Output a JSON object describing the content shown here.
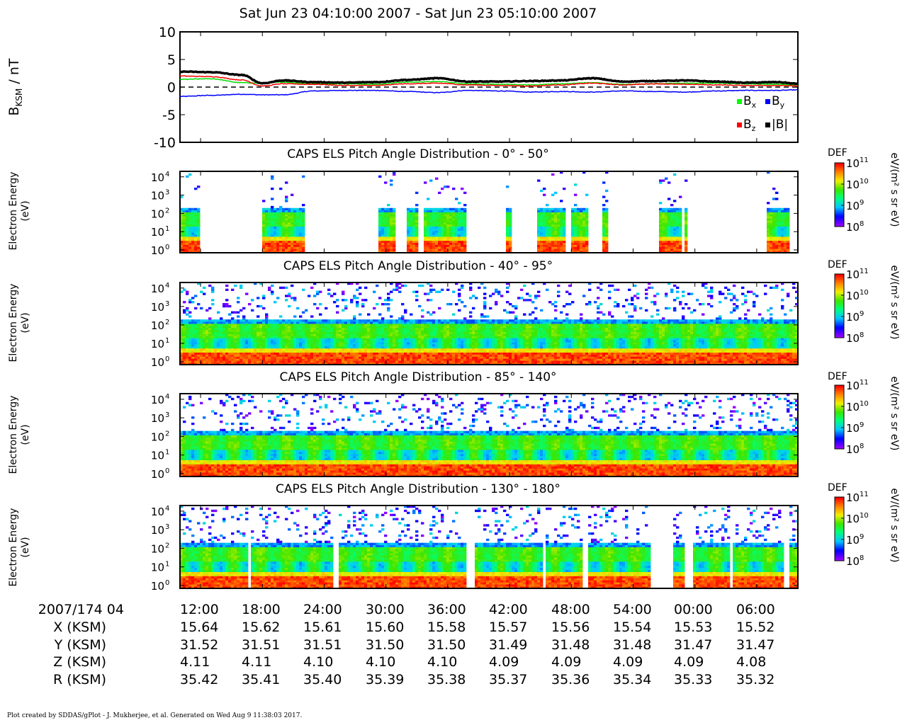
{
  "title": "Sat Jun 23 04:10:00 2007 - Sat Jun 23 05:10:00 2007",
  "mag_panel": {
    "ylabel_main": "B",
    "ylabel_sub": "KSM",
    "ylabel_unit": " / nT",
    "yticks": [
      "10",
      "5",
      "0",
      "-5",
      "-10"
    ],
    "legend": [
      {
        "name": "B",
        "sub": "x",
        "color": "#00ff00"
      },
      {
        "name": "B",
        "sub": "y",
        "color": "#0000ff"
      },
      {
        "name": "B",
        "sub": "z",
        "color": "#ff0000"
      },
      {
        "name": "|B|",
        "sub": "",
        "color": "#000000"
      }
    ]
  },
  "spectrograms": [
    {
      "title": "CAPS ELS Pitch Angle Distribution - 0° - 50°",
      "ylabel_line1": "Electron Energy",
      "ylabel_line2": "(eV)"
    },
    {
      "title": "CAPS ELS Pitch Angle Distribution - 40° - 95°",
      "ylabel_line1": "Electron Energy",
      "ylabel_line2": "(eV)"
    },
    {
      "title": "CAPS ELS Pitch Angle Distribution - 85° - 140°",
      "ylabel_line1": "Electron Energy",
      "ylabel_line2": "(eV)"
    },
    {
      "title": "CAPS ELS Pitch Angle Distribution - 130° - 180°",
      "ylabel_line1": "Electron Energy",
      "ylabel_line2": "(eV)"
    }
  ],
  "energy_ticks": [
    "10",
    "10",
    "10",
    "10",
    "10"
  ],
  "energy_exps": [
    "4",
    "3",
    "2",
    "1",
    "0"
  ],
  "colorbar": {
    "label": "DEF",
    "unit": "eV/(m² s sr eV)",
    "ticks": [
      "10",
      "10",
      "10",
      "10"
    ],
    "exps": [
      "11",
      "10",
      "9",
      "8"
    ]
  },
  "ephemeris": {
    "date_label": "2007/174 04",
    "times": [
      "12:00",
      "18:00",
      "24:00",
      "30:00",
      "36:00",
      "42:00",
      "48:00",
      "54:00",
      "00:00",
      "06:00"
    ],
    "rows": [
      {
        "label": "X (KSM)",
        "values": [
          "15.64",
          "15.62",
          "15.61",
          "15.60",
          "15.58",
          "15.57",
          "15.56",
          "15.54",
          "15.53",
          "15.52"
        ]
      },
      {
        "label": "Y (KSM)",
        "values": [
          "31.52",
          "31.51",
          "31.51",
          "31.50",
          "31.50",
          "31.49",
          "31.48",
          "31.48",
          "31.47",
          "31.47"
        ]
      },
      {
        "label": "Z (KSM)",
        "values": [
          "4.11",
          "4.11",
          "4.10",
          "4.10",
          "4.10",
          "4.09",
          "4.09",
          "4.09",
          "4.09",
          "4.08"
        ]
      },
      {
        "label": "R (KSM)",
        "values": [
          "35.42",
          "35.41",
          "35.40",
          "35.39",
          "35.38",
          "35.37",
          "35.36",
          "35.34",
          "35.33",
          "35.32"
        ]
      }
    ]
  },
  "footer": "Plot created by SDDAS/gPlot - J. Mukherjee, et al.  Generated on Wed Aug 9 11:38:03 2017.",
  "chart_data": [
    {
      "type": "line",
      "title": "Sat Jun 23 04:10:00 2007 - Sat Jun 23 05:10:00 2007",
      "ylabel": "BKSM / nT",
      "xlabel": "2007/174 04",
      "ylim": [
        -10,
        10
      ],
      "x_minutes": [
        10,
        13,
        16,
        18,
        20,
        23,
        26,
        29,
        32,
        35,
        38,
        41,
        44,
        47,
        50,
        53,
        56,
        59,
        62,
        65,
        68,
        70
      ],
      "series": [
        {
          "name": "Bx",
          "values": [
            1.4,
            1.5,
            0.8,
            0.7,
            0.9,
            0.6,
            0.6,
            0.5,
            0.9,
            1.0,
            0.6,
            0.5,
            0.4,
            0.6,
            0.8,
            0.5,
            0.6,
            0.7,
            0.7,
            0.6,
            0.5,
            0.4
          ]
        },
        {
          "name": "By",
          "values": [
            -1.7,
            -1.5,
            -1.3,
            -1.4,
            -1.4,
            -0.7,
            -0.6,
            -0.6,
            -0.8,
            -1.0,
            -0.6,
            -0.7,
            -0.9,
            -0.8,
            -0.9,
            -0.7,
            -0.8,
            -0.9,
            -0.7,
            -0.6,
            -0.6,
            -0.5
          ]
        },
        {
          "name": "Bz",
          "values": [
            2.0,
            1.9,
            1.3,
            0.2,
            0.6,
            0.5,
            0.3,
            0.3,
            0.6,
            0.7,
            0.4,
            0.3,
            0.2,
            0.4,
            0.7,
            0.4,
            0.6,
            0.5,
            0.4,
            0.3,
            0.3,
            0.2
          ]
        },
        {
          "name": "|B|",
          "values": [
            2.8,
            2.7,
            2.2,
            0.7,
            1.2,
            0.9,
            0.8,
            0.9,
            1.3,
            1.6,
            1.0,
            1.0,
            1.1,
            1.2,
            1.6,
            1.0,
            1.1,
            1.2,
            1.0,
            0.8,
            0.9,
            0.6
          ]
        }
      ]
    },
    {
      "type": "heatmap",
      "title": "CAPS ELS Pitch Angle Distribution - 0° - 50°",
      "ylabel": "Electron Energy (eV)",
      "y_scale": "log",
      "ylim": [
        1,
        20000
      ],
      "color_scale": "log DEF 1e8 - 1e11 eV/(m² s sr eV)",
      "data_gaps_minutes": [
        [
          12.0,
          18.1
        ],
        [
          22.0,
          29.2
        ],
        [
          30.8,
          32.0
        ],
        [
          33.2,
          33.8
        ],
        [
          37.8,
          41.6
        ],
        [
          42.3,
          44.7
        ],
        [
          51.6,
          56.6
        ],
        [
          58.6,
          59.0
        ],
        [
          59.4,
          67.0
        ],
        [
          69.3,
          70.0
        ],
        [
          47.3,
          48.0
        ],
        [
          49.6,
          51.0
        ]
      ],
      "dominant_energy_band_eV": [
        1,
        200
      ]
    },
    {
      "type": "heatmap",
      "title": "CAPS ELS Pitch Angle Distribution - 40° - 95°",
      "ylabel": "Electron Energy (eV)",
      "y_scale": "log",
      "ylim": [
        1,
        20000
      ],
      "color_scale": "log DEF 1e8 - 1e11 eV/(m² s sr eV)",
      "dominant_energy_band_eV": [
        1,
        200
      ]
    },
    {
      "type": "heatmap",
      "title": "CAPS ELS Pitch Angle Distribution - 85° - 140°",
      "ylabel": "Electron Energy (eV)",
      "y_scale": "log",
      "ylim": [
        1,
        20000
      ],
      "color_scale": "log DEF 1e8 - 1e11 eV/(m² s sr eV)",
      "dominant_energy_band_eV": [
        1,
        200
      ]
    },
    {
      "type": "heatmap",
      "title": "CAPS ELS Pitch Angle Distribution - 130° - 180°",
      "ylabel": "Electron Energy (eV)",
      "y_scale": "log",
      "ylim": [
        1,
        20000
      ],
      "color_scale": "log DEF 1e8 - 1e11 eV/(m² s sr eV)",
      "data_gaps_minutes": [
        [
          16.6,
          16.9
        ],
        [
          24.8,
          25.5
        ],
        [
          37.7,
          38.5
        ],
        [
          43.2,
          43.4
        ],
        [
          44.0,
          44.2
        ],
        [
          45.3,
          45.6
        ],
        [
          49.0,
          49.5
        ],
        [
          55.6,
          57.9
        ],
        [
          58.9,
          59.7
        ],
        [
          63.5,
          63.8
        ],
        [
          68.6,
          69.3
        ]
      ],
      "dominant_energy_band_eV": [
        1,
        200
      ]
    }
  ]
}
